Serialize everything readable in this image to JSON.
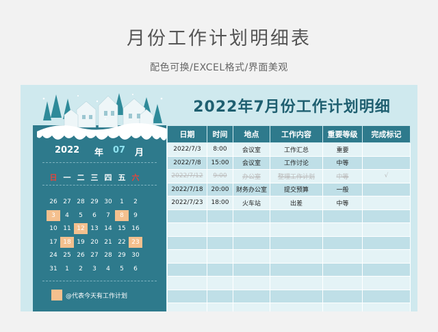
{
  "page": {
    "title": "月份工作计划明细表",
    "subtitle": "配色可换/EXCEL格式/界面美观"
  },
  "sheet": {
    "heading": "2022年7月份工作计划明细"
  },
  "calendar": {
    "year": "2022",
    "year_unit": "年",
    "month": "07",
    "month_unit": "月",
    "weekdays": [
      "日",
      "一",
      "二",
      "三",
      "四",
      "五",
      "六"
    ],
    "weeks": [
      [
        "26",
        "27",
        "28",
        "29",
        "30",
        "1",
        "2"
      ],
      [
        "3",
        "4",
        "5",
        "6",
        "7",
        "8",
        "9"
      ],
      [
        "10",
        "11",
        "12",
        "13",
        "14",
        "15",
        "16"
      ],
      [
        "17",
        "18",
        "19",
        "20",
        "21",
        "22",
        "23"
      ],
      [
        "24",
        "25",
        "26",
        "27",
        "28",
        "29",
        "30"
      ],
      [
        "31",
        "1",
        "2",
        "3",
        "4",
        "5",
        "6"
      ]
    ],
    "highlighted_days": [
      "3",
      "8",
      "12",
      "18",
      "23"
    ],
    "legend": "@代表今天有工作计划",
    "colors": {
      "panel": "#2e7a8c",
      "highlight": "#f4c08e",
      "sunday_saturday": "#e8433a"
    }
  },
  "table": {
    "headers": [
      "日期",
      "时间",
      "地点",
      "工作内容",
      "重要等级",
      "完成标记"
    ],
    "rows": [
      {
        "date": "2022/7/3",
        "time": "8:00",
        "place": "会议室",
        "content": "工作汇总",
        "level": "重要",
        "mark": "",
        "done": false
      },
      {
        "date": "2022/7/8",
        "time": "15:00",
        "place": "会议室",
        "content": "工作讨论",
        "level": "中等",
        "mark": "",
        "done": false
      },
      {
        "date": "2022/7/12",
        "time": "9:00",
        "place": "办公室",
        "content": "整理工作计划",
        "level": "中等",
        "mark": "√",
        "done": true
      },
      {
        "date": "2022/7/18",
        "time": "20:00",
        "place": "财务办公室",
        "content": "提交预算",
        "level": "一般",
        "mark": "",
        "done": false
      },
      {
        "date": "2022/7/23",
        "time": "18:00",
        "place": "火车站",
        "content": "出差",
        "level": "中等",
        "mark": "",
        "done": false
      }
    ],
    "empty_rows": 8,
    "colors": {
      "header": "#2e7a8c",
      "row_light": "#e4f3f6",
      "row_dark": "#bfdfe7"
    }
  }
}
